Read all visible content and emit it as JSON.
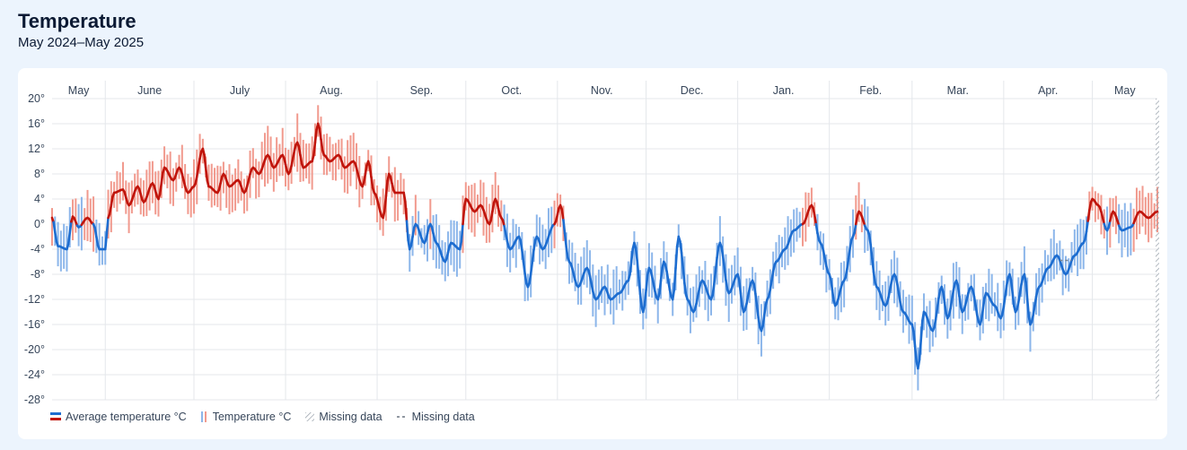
{
  "header": {
    "title": "Temperature",
    "subtitle": "May 2024–May 2025"
  },
  "legend": {
    "items": [
      {
        "label": "Average temperature °C",
        "kind": "avg"
      },
      {
        "label": "Temperature °C",
        "kind": "range"
      },
      {
        "label": "Missing data",
        "kind": "missing-hatch"
      },
      {
        "label": "Missing data",
        "kind": "missing-dash"
      }
    ]
  },
  "colors": {
    "warm_line": "#c0150c",
    "warm_bar": "#f19a8e",
    "cold_line": "#1d6dd0",
    "cold_bar": "#8cb6ea",
    "grid": "#e4e7eb",
    "missing": "#9aa3ad"
  },
  "chart_data": {
    "type": "line",
    "x_unit": "date",
    "x_range": [
      "2024-05-14",
      "2025-05-23"
    ],
    "months": [
      {
        "label": "May",
        "start": "2024-05-14"
      },
      {
        "label": "June",
        "start": "2024-06-01"
      },
      {
        "label": "July",
        "start": "2024-07-01"
      },
      {
        "label": "Aug.",
        "start": "2024-08-01"
      },
      {
        "label": "Sep.",
        "start": "2024-09-01"
      },
      {
        "label": "Oct.",
        "start": "2024-10-01"
      },
      {
        "label": "Nov.",
        "start": "2024-11-01"
      },
      {
        "label": "Dec.",
        "start": "2024-12-01"
      },
      {
        "label": "Jan.",
        "start": "2025-01-01"
      },
      {
        "label": "Feb.",
        "start": "2025-02-01"
      },
      {
        "label": "Mar.",
        "start": "2025-03-01"
      },
      {
        "label": "Apr.",
        "start": "2025-04-01"
      },
      {
        "label": "May",
        "start": "2025-05-01"
      }
    ],
    "y_ticks": [
      20,
      16,
      12,
      8,
      4,
      0,
      -4,
      -8,
      -12,
      -16,
      -20,
      -24,
      -28
    ],
    "y_tick_suffix": "°",
    "ylim": [
      -28,
      20
    ],
    "grid": true,
    "legend_position": "bottom-left",
    "warm_threshold": 0,
    "average_series": {
      "name": "Average temperature °C",
      "points": [
        [
          "2024-05-14",
          1
        ],
        [
          "2024-05-16",
          -3.5
        ],
        [
          "2024-05-19",
          -4
        ],
        [
          "2024-05-21",
          1.2
        ],
        [
          "2024-05-23",
          -0.5
        ],
        [
          "2024-05-26",
          1
        ],
        [
          "2024-05-28",
          0
        ],
        [
          "2024-05-30",
          -4
        ],
        [
          "2024-06-01",
          -4
        ],
        [
          "2024-06-02",
          1
        ],
        [
          "2024-06-04",
          5
        ],
        [
          "2024-06-07",
          5.5
        ],
        [
          "2024-06-09",
          3
        ],
        [
          "2024-06-12",
          6
        ],
        [
          "2024-06-14",
          3.5
        ],
        [
          "2024-06-17",
          6.5
        ],
        [
          "2024-06-19",
          4
        ],
        [
          "2024-06-21",
          9
        ],
        [
          "2024-06-24",
          7
        ],
        [
          "2024-06-26",
          9
        ],
        [
          "2024-06-29",
          5
        ],
        [
          "2024-07-01",
          6
        ],
        [
          "2024-07-04",
          12
        ],
        [
          "2024-07-06",
          6
        ],
        [
          "2024-07-09",
          5
        ],
        [
          "2024-07-11",
          8
        ],
        [
          "2024-07-13",
          6
        ],
        [
          "2024-07-16",
          7
        ],
        [
          "2024-07-18",
          5
        ],
        [
          "2024-07-21",
          9
        ],
        [
          "2024-07-23",
          8
        ],
        [
          "2024-07-26",
          11
        ],
        [
          "2024-07-28",
          9
        ],
        [
          "2024-07-31",
          11
        ],
        [
          "2024-08-02",
          8
        ],
        [
          "2024-08-05",
          13
        ],
        [
          "2024-08-07",
          9
        ],
        [
          "2024-08-10",
          10
        ],
        [
          "2024-08-12",
          16
        ],
        [
          "2024-08-14",
          11
        ],
        [
          "2024-08-16",
          10
        ],
        [
          "2024-08-19",
          11
        ],
        [
          "2024-08-21",
          9
        ],
        [
          "2024-08-24",
          10
        ],
        [
          "2024-08-27",
          6
        ],
        [
          "2024-08-29",
          10
        ],
        [
          "2024-08-31",
          5
        ],
        [
          "2024-09-03",
          1
        ],
        [
          "2024-09-05",
          8
        ],
        [
          "2024-09-07",
          5
        ],
        [
          "2024-09-10",
          5
        ],
        [
          "2024-09-12",
          -4
        ],
        [
          "2024-09-14",
          0
        ],
        [
          "2024-09-17",
          -3
        ],
        [
          "2024-09-19",
          0
        ],
        [
          "2024-09-21",
          -3
        ],
        [
          "2024-09-24",
          -6
        ],
        [
          "2024-09-26",
          -3
        ],
        [
          "2024-09-29",
          -4
        ],
        [
          "2024-10-01",
          4
        ],
        [
          "2024-10-04",
          2
        ],
        [
          "2024-10-06",
          3
        ],
        [
          "2024-10-09",
          0
        ],
        [
          "2024-10-11",
          4
        ],
        [
          "2024-10-13",
          1
        ],
        [
          "2024-10-16",
          -4
        ],
        [
          "2024-10-19",
          -2
        ],
        [
          "2024-10-22",
          -10
        ],
        [
          "2024-10-25",
          -2
        ],
        [
          "2024-10-27",
          -4
        ],
        [
          "2024-10-31",
          0
        ],
        [
          "2024-11-02",
          3
        ],
        [
          "2024-11-05",
          -6
        ],
        [
          "2024-11-08",
          -10
        ],
        [
          "2024-11-11",
          -7
        ],
        [
          "2024-11-14",
          -12
        ],
        [
          "2024-11-17",
          -10
        ],
        [
          "2024-11-19",
          -12
        ],
        [
          "2024-11-22",
          -11
        ],
        [
          "2024-11-25",
          -9
        ],
        [
          "2024-11-27",
          -3
        ],
        [
          "2024-11-30",
          -14
        ],
        [
          "2024-12-02",
          -7
        ],
        [
          "2024-12-05",
          -12
        ],
        [
          "2024-12-07",
          -6
        ],
        [
          "2024-12-10",
          -12
        ],
        [
          "2024-12-12",
          -2
        ],
        [
          "2024-12-15",
          -12
        ],
        [
          "2024-12-17",
          -14
        ],
        [
          "2024-12-20",
          -9
        ],
        [
          "2024-12-23",
          -12
        ],
        [
          "2024-12-26",
          -3
        ],
        [
          "2024-12-29",
          -11
        ],
        [
          "2025-01-01",
          -8
        ],
        [
          "2025-01-03",
          -14
        ],
        [
          "2025-01-06",
          -9
        ],
        [
          "2025-01-09",
          -17
        ],
        [
          "2025-01-11",
          -12
        ],
        [
          "2025-01-14",
          -6
        ],
        [
          "2025-01-17",
          -4
        ],
        [
          "2025-01-20",
          -1
        ],
        [
          "2025-01-23",
          0
        ],
        [
          "2025-01-26",
          3
        ],
        [
          "2025-01-29",
          -3
        ],
        [
          "2025-02-01",
          -8
        ],
        [
          "2025-02-03",
          -13
        ],
        [
          "2025-02-06",
          -9
        ],
        [
          "2025-02-09",
          -2
        ],
        [
          "2025-02-11",
          2
        ],
        [
          "2025-02-14",
          -1
        ],
        [
          "2025-02-17",
          -10
        ],
        [
          "2025-02-20",
          -13
        ],
        [
          "2025-02-23",
          -8
        ],
        [
          "2025-02-26",
          -14
        ],
        [
          "2025-03-01",
          -16
        ],
        [
          "2025-03-03",
          -23
        ],
        [
          "2025-03-05",
          -14
        ],
        [
          "2025-03-08",
          -17
        ],
        [
          "2025-03-11",
          -10
        ],
        [
          "2025-03-13",
          -15
        ],
        [
          "2025-03-16",
          -9
        ],
        [
          "2025-03-18",
          -14
        ],
        [
          "2025-03-21",
          -10
        ],
        [
          "2025-03-24",
          -16
        ],
        [
          "2025-03-26",
          -11
        ],
        [
          "2025-03-29",
          -13
        ],
        [
          "2025-03-31",
          -15
        ],
        [
          "2025-04-03",
          -8
        ],
        [
          "2025-04-05",
          -14
        ],
        [
          "2025-04-08",
          -8
        ],
        [
          "2025-04-10",
          -16
        ],
        [
          "2025-04-13",
          -10
        ],
        [
          "2025-04-16",
          -7
        ],
        [
          "2025-04-19",
          -5
        ],
        [
          "2025-04-22",
          -8
        ],
        [
          "2025-04-25",
          -5
        ],
        [
          "2025-04-28",
          -3
        ],
        [
          "2025-05-01",
          4
        ],
        [
          "2025-05-03",
          3
        ],
        [
          "2025-05-06",
          -1
        ],
        [
          "2025-05-08",
          2
        ],
        [
          "2025-05-11",
          -1
        ],
        [
          "2025-05-14",
          -0.5
        ],
        [
          "2025-05-17",
          2
        ],
        [
          "2025-05-20",
          1
        ],
        [
          "2025-05-23",
          2
        ]
      ]
    },
    "range_series": {
      "name": "Temperature °C",
      "spread": 2.6,
      "sampling_days": 1
    },
    "missing": [
      {
        "kind": "dash",
        "from": "2025-04-20",
        "to": "2025-04-24"
      },
      {
        "kind": "hatch",
        "from": "2025-05-23",
        "to": "2025-05-23"
      }
    ]
  }
}
